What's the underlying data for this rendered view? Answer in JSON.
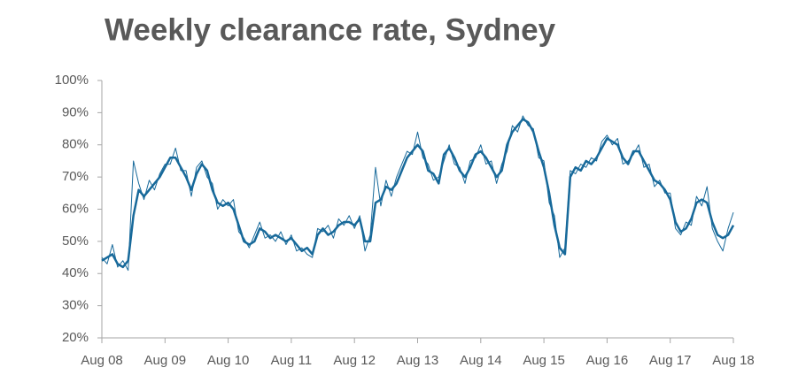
{
  "chart_data": {
    "type": "line",
    "title": "Weekly clearance rate, Sydney",
    "categories": [
      "Aug 08",
      null,
      null,
      null,
      null,
      null,
      null,
      null,
      null,
      null,
      null,
      null,
      "Aug 09",
      null,
      null,
      null,
      null,
      null,
      null,
      null,
      null,
      null,
      null,
      null,
      "Aug 10",
      null,
      null,
      null,
      null,
      null,
      null,
      null,
      null,
      null,
      null,
      null,
      "Aug 11",
      null,
      null,
      null,
      null,
      null,
      null,
      null,
      null,
      null,
      null,
      null,
      "Aug 12",
      null,
      null,
      null,
      null,
      null,
      null,
      null,
      null,
      null,
      null,
      null,
      "Aug 13",
      null,
      null,
      null,
      null,
      null,
      null,
      null,
      null,
      null,
      null,
      null,
      "Aug 14",
      null,
      null,
      null,
      null,
      null,
      null,
      null,
      null,
      null,
      null,
      null,
      "Aug 15",
      null,
      null,
      null,
      null,
      null,
      null,
      null,
      null,
      null,
      null,
      null,
      "Aug 16",
      null,
      null,
      null,
      null,
      null,
      null,
      null,
      null,
      null,
      null,
      null,
      "Aug 17",
      null,
      null,
      null,
      null,
      null,
      null,
      null,
      null,
      null,
      null,
      null,
      "Aug 18"
    ],
    "series": [
      {
        "color": "#17699a",
        "line_width": 1,
        "values": [
          45,
          43,
          49,
          42,
          44,
          41,
          75,
          68,
          63,
          69,
          66,
          71,
          74,
          74,
          79,
          72,
          72,
          64,
          73,
          75,
          70,
          68,
          60,
          63,
          61,
          63,
          53,
          51,
          48,
          52,
          56,
          51,
          52,
          50,
          53,
          49,
          52,
          47,
          48,
          46,
          45,
          54,
          53,
          55,
          51,
          57,
          55,
          58,
          54,
          58,
          47,
          52,
          73,
          61,
          69,
          64,
          70,
          74,
          78,
          77,
          84,
          76,
          74,
          69,
          70,
          75,
          80,
          74,
          73,
          68,
          75,
          76,
          80,
          74,
          75,
          68,
          74,
          78,
          86,
          84,
          89,
          86,
          85,
          76,
          75,
          62,
          58,
          45,
          48,
          72,
          71,
          74,
          73,
          76,
          75,
          81,
          83,
          80,
          82,
          74,
          75,
          77,
          80,
          73,
          74,
          67,
          69,
          65,
          65,
          54,
          52,
          56,
          55,
          64,
          61,
          67,
          54,
          50,
          47,
          54,
          59
        ]
      },
      {
        "color": "#17699a",
        "line_width": 2.5,
        "values": [
          44,
          45,
          46,
          43,
          42,
          44,
          58,
          66,
          64,
          66,
          68,
          70,
          73,
          76,
          76,
          73,
          70,
          66,
          71,
          74,
          72,
          66,
          62,
          61,
          62,
          60,
          55,
          50,
          49,
          50,
          54,
          53,
          51,
          52,
          51,
          50,
          51,
          49,
          47,
          48,
          46,
          52,
          54,
          52,
          53,
          55,
          56,
          56,
          55,
          57,
          50,
          50,
          62,
          63,
          67,
          66,
          68,
          72,
          76,
          78,
          80,
          78,
          72,
          71,
          68,
          77,
          79,
          76,
          72,
          70,
          73,
          77,
          78,
          76,
          73,
          70,
          72,
          80,
          84,
          86,
          88,
          87,
          84,
          78,
          73,
          65,
          55,
          48,
          46,
          70,
          73,
          72,
          75,
          74,
          76,
          79,
          82,
          81,
          80,
          76,
          74,
          78,
          78,
          75,
          72,
          69,
          68,
          66,
          63,
          56,
          53,
          54,
          57,
          62,
          63,
          62,
          56,
          52,
          51,
          52,
          55
        ]
      }
    ],
    "ylim": [
      20,
      100
    ],
    "yticks": [
      {
        "value": 20,
        "label": "20%"
      },
      {
        "value": 30,
        "label": "30%"
      },
      {
        "value": 40,
        "label": "40%"
      },
      {
        "value": 50,
        "label": "50%"
      },
      {
        "value": 60,
        "label": "60%"
      },
      {
        "value": 70,
        "label": "70%"
      },
      {
        "value": 80,
        "label": "80%"
      },
      {
        "value": 90,
        "label": "90%"
      },
      {
        "value": 100,
        "label": "100%"
      }
    ],
    "grid": false
  }
}
